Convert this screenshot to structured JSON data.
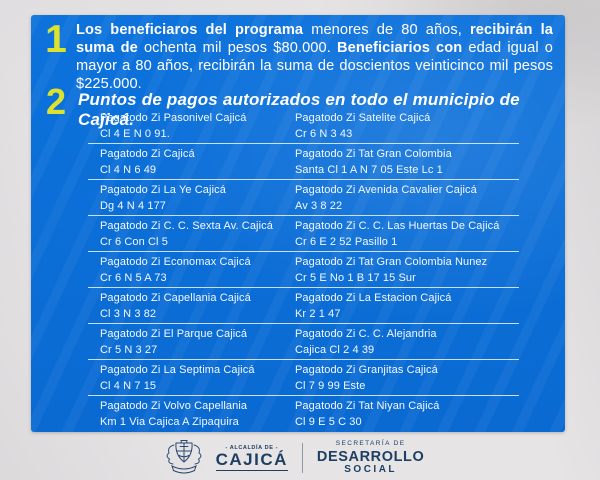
{
  "colors": {
    "panel_blue": "#0b6ed8",
    "accent_yellow": "#dde22f",
    "navy": "#1e3f63",
    "paper_gray": "#e6e4e5",
    "row_divider": "#e8f4ff"
  },
  "banner": {
    "item1": {
      "number": "1",
      "segments": [
        {
          "text": "Los beneficiaros del programa ",
          "bold": true
        },
        {
          "text": "menores de 80 años, ",
          "bold": false
        },
        {
          "text": "recibirán la suma de ",
          "bold": true
        },
        {
          "text": "ochenta mil pesos $80.000. ",
          "bold": false
        },
        {
          "text": "Beneficiarios con ",
          "bold": true
        },
        {
          "text": "edad igual o mayor a 80 años, ",
          "bold": false
        },
        {
          "text": "recibirán la suma de doscientos veinticinco mil pesos $225.000.",
          "bold": false
        }
      ]
    },
    "item2": {
      "number": "2",
      "text": "Puntos de pagos autorizados en todo el municipio de Cajicá."
    }
  },
  "locations": {
    "left": [
      {
        "name": "Pagatodo Zi Pasonivel Cajicá",
        "address": "Cl 4 E N 0 91."
      },
      {
        "name": "Pagatodo Zi Cajicá",
        "address": "Cl 4 N 6 49"
      },
      {
        "name": "Pagatodo Zi La Ye Cajicá",
        "address": "Dg 4 N 4 177"
      },
      {
        "name": "Pagatodo Zi C. C. Sexta Av. Cajicá",
        "address": "Cr 6 Con Cl 5"
      },
      {
        "name": "Pagatodo Zi Economax Cajicá",
        "address": "Cr 6 N 5 A 73"
      },
      {
        "name": "Pagatodo Zi Capellania Cajicá",
        "address": "Cl 3 N 3 82"
      },
      {
        "name": "Pagatodo Zi El Parque Cajicá",
        "address": "Cr 5 N 3 27"
      },
      {
        "name": "Pagatodo Zi La Septima Cajicá",
        "address": "Cl 4 N 7 15"
      },
      {
        "name": "Pagatodo Zi Volvo Capellania",
        "address": "Km 1 Via Cajica A Zipaquira"
      }
    ],
    "right": [
      {
        "name": "Pagatodo Zi Satelite Cajicá",
        "address": "Cr 6 N 3 43"
      },
      {
        "name": "Pagatodo Zi Tat Gran Colombia",
        "address": "Santa Cl 1 A N 7 05 Este Lc 1"
      },
      {
        "name": "Pagatodo Zi Avenida Cavalier Cajicá",
        "address": "Av 3 8 22"
      },
      {
        "name": "Pagatodo Zi C. C. Las Huertas De Cajicá",
        "address": "Cr 6 E 2 52 Pasillo 1"
      },
      {
        "name": "Pagatodo Zi Tat Gran Colombia Nunez",
        "address": "Cr 5 E No 1 B 17 15 Sur"
      },
      {
        "name": "Pagatodo Zi La Estacion Cajicá",
        "address": "Kr 2 1 47"
      },
      {
        "name": "Pagatodo Zi C. C. Alejandria",
        "address": "Cajica Cl 2 4 39"
      },
      {
        "name": "Pagatodo Zi Granjitas Cajicá",
        "address": "Cl 7 9 99 Este"
      },
      {
        "name": "Pagatodo Zi Tat Niyan Cajicá",
        "address": "Cl 9 E 5 C 30"
      }
    ]
  },
  "footer": {
    "crest_icon": "cajica-coat-of-arms",
    "alcaldia_small": "- ALCALDÍA DE -",
    "alcaldia_big": "CAJICÁ",
    "secretaria_small": "SECRETARÍA DE",
    "secretaria_big": "DESARROLLO",
    "secretaria_sub": "SOCIAL"
  }
}
